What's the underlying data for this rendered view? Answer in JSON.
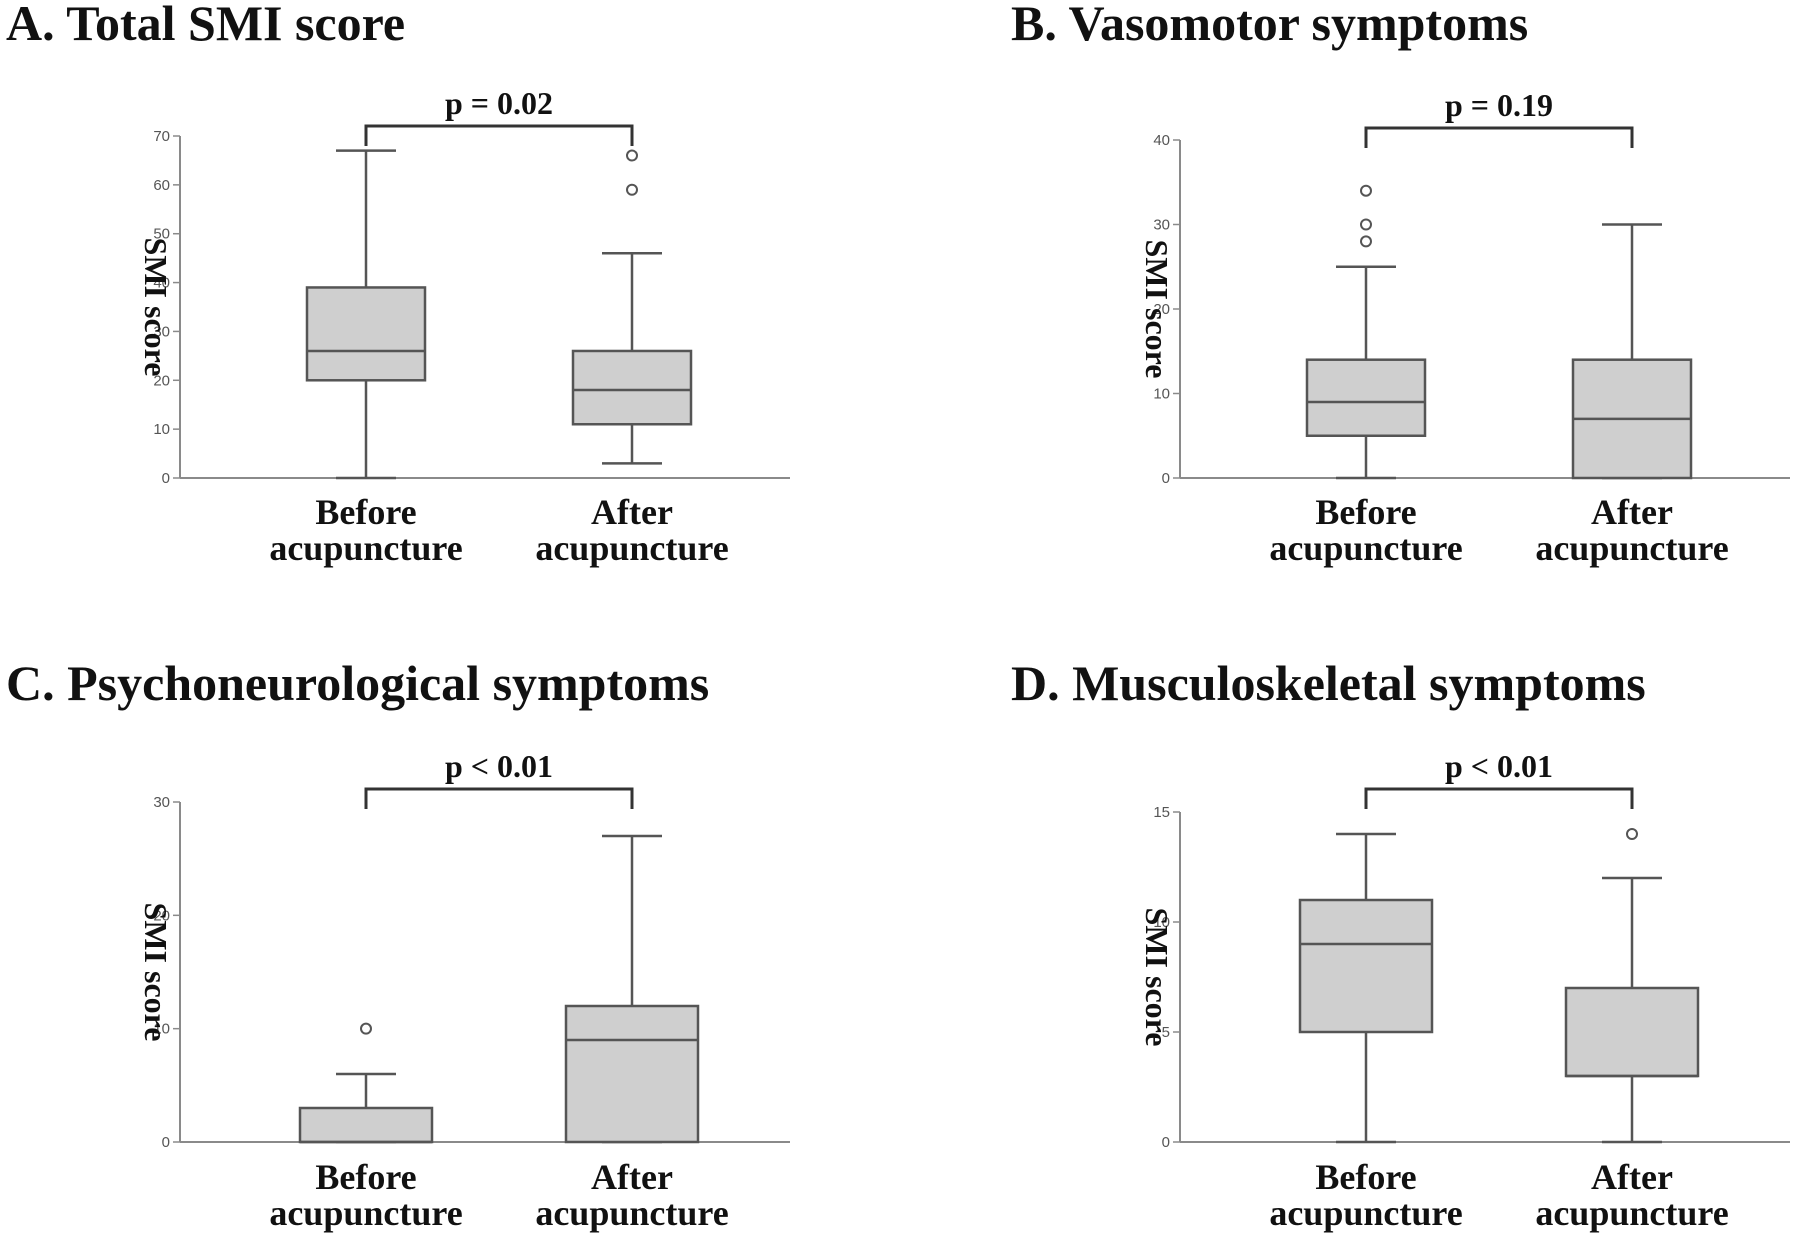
{
  "chart_data": [
    {
      "type": "box",
      "title": "A. Total SMI score",
      "ylabel": "SMI score",
      "ylim": [
        0,
        70
      ],
      "yticks": [
        0,
        10,
        20,
        30,
        40,
        50,
        60,
        70
      ],
      "categories": [
        {
          "line1": "Before",
          "line2": "acupuncture"
        },
        {
          "line1": "After",
          "line2": "acupuncture"
        }
      ],
      "boxes": [
        {
          "min": 0,
          "q1": 20,
          "median": 26,
          "q3": 39,
          "max": 67,
          "outliers": []
        },
        {
          "min": 3,
          "q1": 11,
          "median": 18,
          "q3": 26,
          "max": 46,
          "outliers": [
            59,
            66
          ]
        }
      ],
      "annotation": "p = 0.02"
    },
    {
      "type": "box",
      "title": "B. Vasomotor symptoms",
      "ylabel": "SMI score",
      "ylim": [
        0,
        40
      ],
      "yticks": [
        0,
        10,
        20,
        30,
        40
      ],
      "categories": [
        {
          "line1": "Before",
          "line2": "acupuncture"
        },
        {
          "line1": "After",
          "line2": "acupuncture"
        }
      ],
      "boxes": [
        {
          "min": 0,
          "q1": 5,
          "median": 9,
          "q3": 14,
          "max": 25,
          "outliers": [
            28,
            30,
            34
          ]
        },
        {
          "min": 0,
          "q1": 0,
          "median": 7,
          "q3": 14,
          "max": 30,
          "outliers": []
        }
      ],
      "annotation": "p = 0.19"
    },
    {
      "type": "box",
      "title": "C. Psychoneurological symptoms",
      "ylabel": "SMI score",
      "ylim": [
        0,
        30
      ],
      "yticks": [
        0,
        10,
        20,
        30
      ],
      "categories": [
        {
          "line1": "Before",
          "line2": "acupuncture"
        },
        {
          "line1": "After",
          "line2": "acupuncture"
        }
      ],
      "boxes": [
        {
          "min": 0,
          "q1": 0,
          "median": 0,
          "q3": 3,
          "max": 6,
          "outliers": [
            10
          ]
        },
        {
          "min": 0,
          "q1": 0,
          "median": 9,
          "q3": 12,
          "max": 27,
          "outliers": []
        }
      ],
      "annotation": "p < 0.01"
    },
    {
      "type": "box",
      "title": "D. Musculoskeletal symptoms",
      "ylabel": "SMI score",
      "ylim": [
        0,
        15
      ],
      "yticks": [
        0,
        5,
        10,
        15
      ],
      "categories": [
        {
          "line1": "Before",
          "line2": "acupuncture"
        },
        {
          "line1": "After",
          "line2": "acupuncture"
        }
      ],
      "boxes": [
        {
          "min": 0,
          "q1": 5,
          "median": 9,
          "q3": 11,
          "max": 14,
          "outliers": []
        },
        {
          "min": 0,
          "q1": 3,
          "median": 3,
          "q3": 7,
          "max": 12,
          "outliers": [
            14
          ]
        }
      ],
      "annotation": "p < 0.01"
    }
  ]
}
